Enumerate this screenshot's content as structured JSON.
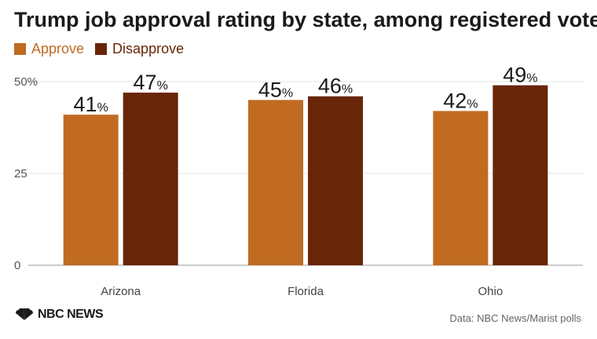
{
  "chart_data": {
    "type": "bar",
    "title": "Trump job approval rating by state, among registered voters",
    "categories": [
      "Arizona",
      "Florida",
      "Ohio"
    ],
    "series": [
      {
        "name": "Approve",
        "values": [
          41,
          45,
          42
        ],
        "color": "#c06b21"
      },
      {
        "name": "Disapprove",
        "values": [
          47,
          46,
          49
        ],
        "color": "#682508"
      }
    ],
    "y_ticks": [
      "0",
      "25",
      "50%"
    ],
    "y_tick_values": [
      0,
      25,
      50
    ],
    "ylim": [
      0,
      50
    ],
    "value_suffix": "%",
    "grid": true,
    "legend": "top-left"
  },
  "footer": {
    "logo_text": "NBC NEWS",
    "source": "Data: NBC News/Marist polls"
  }
}
